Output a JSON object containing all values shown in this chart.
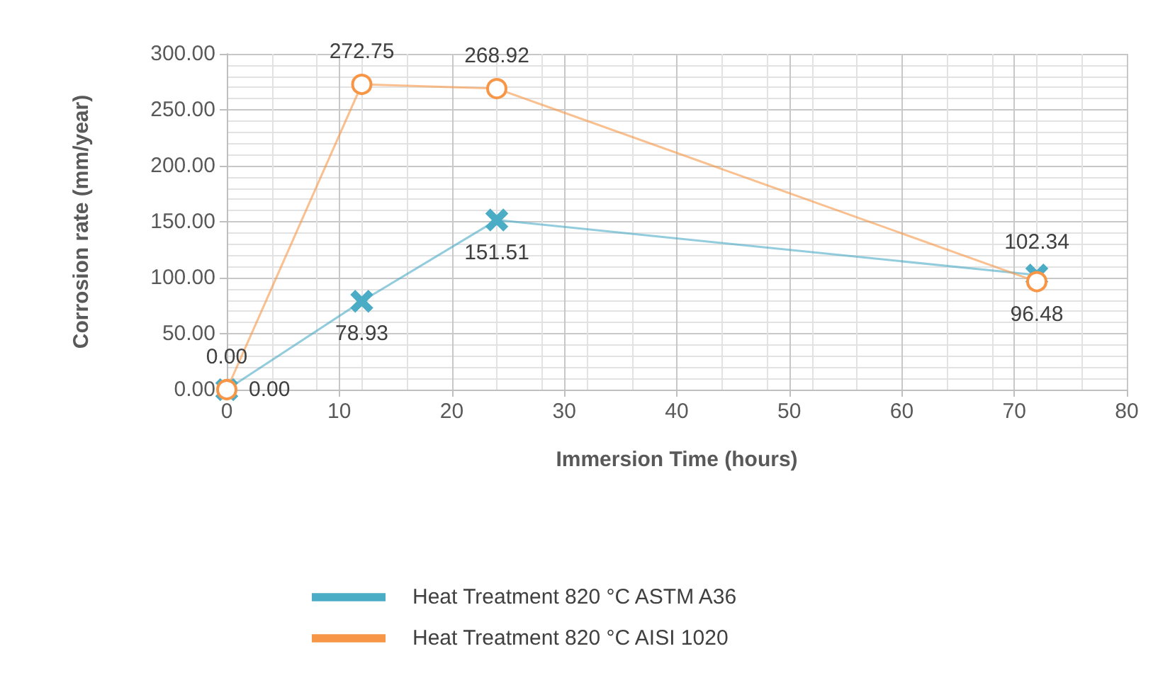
{
  "chart_data": {
    "type": "line",
    "xlabel": "Immersion Time (hours)",
    "ylabel": "Corrosion rate (mm/year)",
    "xlim": [
      0,
      80
    ],
    "xticks": [
      0,
      10,
      20,
      30,
      40,
      50,
      60,
      70,
      80
    ],
    "ylim": [
      0,
      300
    ],
    "yticks": [
      {
        "value": 0,
        "label": "0.00"
      },
      {
        "value": 50,
        "label": "50.00"
      },
      {
        "value": 100,
        "label": "100.00"
      },
      {
        "value": 150,
        "label": "150.00"
      },
      {
        "value": 200,
        "label": "200.00"
      },
      {
        "value": 250,
        "label": "250.00"
      },
      {
        "value": 300,
        "label": "300.00"
      }
    ],
    "x": [
      0,
      12,
      24,
      72
    ],
    "series": [
      {
        "name": "Heat Treatment 820 °C ASTM A36",
        "color": "#4bacc6",
        "marker": "cross",
        "values": [
          0,
          78.93,
          151.51,
          102.34
        ],
        "value_labels": [
          "0.00",
          "78.93",
          "151.51",
          "102.34"
        ]
      },
      {
        "name": "Heat Treatment 820 °C AISI 1020",
        "color": "#f79646",
        "marker": "circle",
        "values": [
          0,
          272.75,
          268.92,
          96.48
        ],
        "value_labels": [
          "0.00",
          "272.75",
          "268.92",
          "96.48"
        ]
      }
    ],
    "grid": true,
    "legend": "bottom"
  }
}
